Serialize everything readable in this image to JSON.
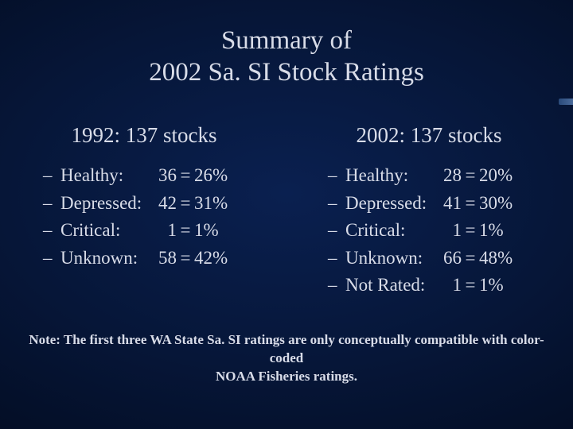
{
  "background": {
    "center": "#0a2050",
    "mid": "#061638",
    "edge": "#020818"
  },
  "text_color": "#d8dce8",
  "title": {
    "line1": "Summary of",
    "line2": "2002 Sa. SI Stock Ratings",
    "fontsize": 33
  },
  "columns": [
    {
      "header": "1992: 137 stocks",
      "items": [
        {
          "label": "Healthy:",
          "count": "36",
          "pct": "26%"
        },
        {
          "label": "Depressed:",
          "count": "42",
          "pct": "31%"
        },
        {
          "label": "Critical:",
          "count": "1",
          "pct": "1%"
        },
        {
          "label": "Unknown:",
          "count": "58",
          "pct": "42%"
        }
      ]
    },
    {
      "header": "2002: 137 stocks",
      "items": [
        {
          "label": "Healthy:",
          "count": "28",
          "pct": "20%"
        },
        {
          "label": "Depressed:",
          "count": "41",
          "pct": "30%"
        },
        {
          "label": "Critical:",
          "count": "1",
          "pct": "1%"
        },
        {
          "label": "Unknown:",
          "count": "66",
          "pct": "48%"
        },
        {
          "label": "Not Rated:",
          "count": "1",
          "pct": "1%"
        }
      ]
    }
  ],
  "note": {
    "line1": "Note: The first three WA State Sa. SI ratings are only conceptually compatible with color-coded",
    "line2": "NOAA Fisheries ratings."
  },
  "bullet_dash": "–",
  "eq_sign": "="
}
